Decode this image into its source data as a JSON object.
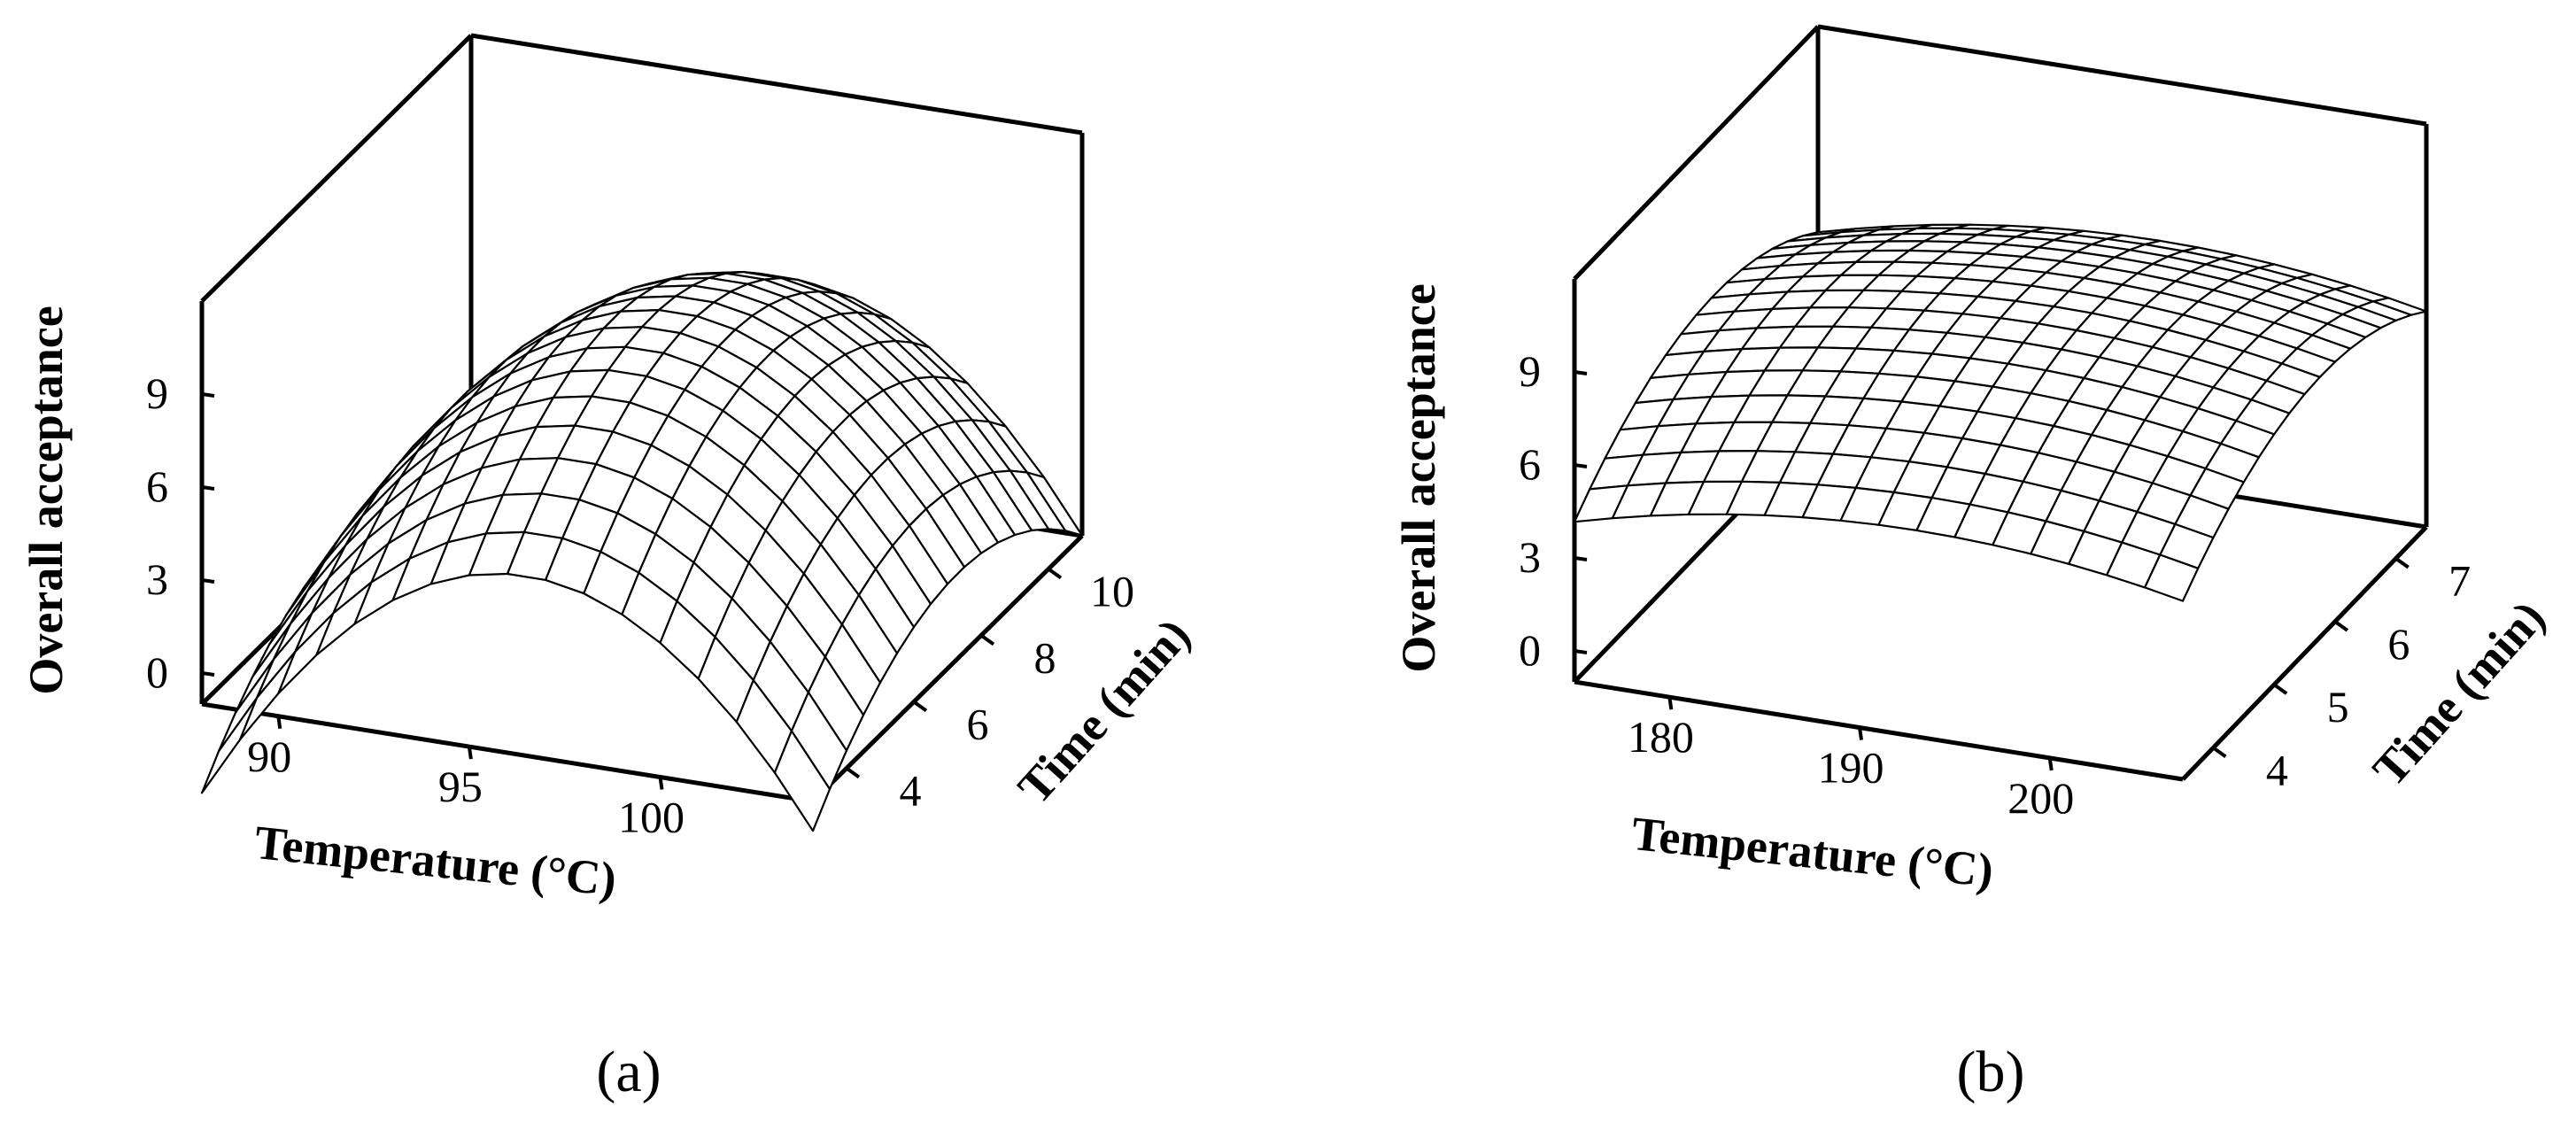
{
  "chart_data": [
    {
      "type": "surface",
      "panel_label": "(a)",
      "zlabel": "Overall acceptance",
      "xlabel": "Temperature (°C)",
      "ylabel": "Time (min)",
      "xlim": [
        88,
        104
      ],
      "ylim": [
        3,
        11
      ],
      "zlim": [
        -1,
        12
      ],
      "x_ticks": [
        90,
        95,
        100
      ],
      "y_ticks": [
        4,
        6,
        8,
        10
      ],
      "z_ticks": [
        0,
        3,
        6,
        9
      ],
      "grid": false,
      "surface": {
        "x_range": [
          88,
          104
        ],
        "y_range": [
          3,
          11
        ],
        "x_steps": 16,
        "y_steps": 16,
        "peak_value": 8.5,
        "peak_x": 96.5,
        "peak_y": 7.3,
        "x_curvature": 0.12,
        "y_curvature": 0.2
      }
    },
    {
      "type": "surface",
      "panel_label": "(b)",
      "zlabel": "Overall acceptance",
      "xlabel": "Temperature (°C)",
      "ylabel": "Time (min)",
      "xlim": [
        175,
        207
      ],
      "ylim": [
        3.5,
        7.5
      ],
      "zlim": [
        -1,
        12
      ],
      "x_ticks": [
        180,
        190,
        200
      ],
      "y_ticks": [
        4,
        5,
        6,
        7
      ],
      "z_ticks": [
        0,
        3,
        6,
        9
      ],
      "grid": false,
      "surface": {
        "x_range": [
          175,
          207
        ],
        "y_range": [
          3.5,
          7.5
        ],
        "x_steps": 16,
        "y_steps": 16,
        "peak_value": 8.3,
        "peak_x": 193,
        "peak_y": 5.8,
        "x_curvature": 0.0046,
        "y_curvature": 0.5
      }
    }
  ]
}
